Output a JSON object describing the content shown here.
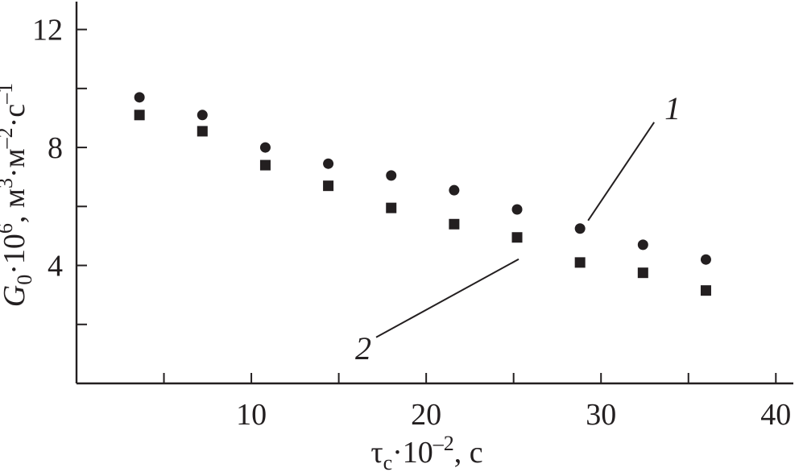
{
  "chart_data": {
    "type": "scatter",
    "title": "",
    "xlabel": {
      "base": "τ",
      "sub": "c",
      "mid": "·10",
      "sup": "–2",
      "tail": ", с"
    },
    "ylabel": {
      "base": "G",
      "sub": "0",
      "part1": "·10",
      "sup1": "6",
      "part2": ", м",
      "sup2": "3",
      "part3": "·м",
      "sup3": "–2",
      "part4": "·с",
      "sup4": "–1"
    },
    "xlim": [
      0,
      41
    ],
    "ylim": [
      0,
      13
    ],
    "x_ticks": [
      5,
      10,
      15,
      20,
      25,
      30,
      35,
      40
    ],
    "x_tick_labels": [
      "",
      "10",
      "",
      "20",
      "",
      "30",
      "",
      "40"
    ],
    "y_ticks": [
      2,
      4,
      6,
      8,
      10,
      12
    ],
    "y_tick_labels": [
      "",
      "4",
      "",
      "8",
      "",
      "12"
    ],
    "grid": false,
    "series": [
      {
        "name": "1",
        "marker": "circle",
        "color": "#231f20",
        "x": [
          3.6,
          7.2,
          10.8,
          14.4,
          18.0,
          21.6,
          25.2,
          28.8,
          32.4,
          36.0
        ],
        "y": [
          9.7,
          9.1,
          8.0,
          7.45,
          7.05,
          6.55,
          5.9,
          5.25,
          4.7,
          4.2
        ]
      },
      {
        "name": "2",
        "marker": "square",
        "color": "#231f20",
        "x": [
          3.6,
          7.2,
          10.8,
          14.4,
          18.0,
          21.6,
          25.2,
          28.8,
          32.4,
          36.0
        ],
        "y": [
          9.1,
          8.55,
          7.4,
          6.7,
          5.95,
          5.4,
          4.95,
          4.1,
          3.75,
          3.15
        ]
      }
    ]
  }
}
